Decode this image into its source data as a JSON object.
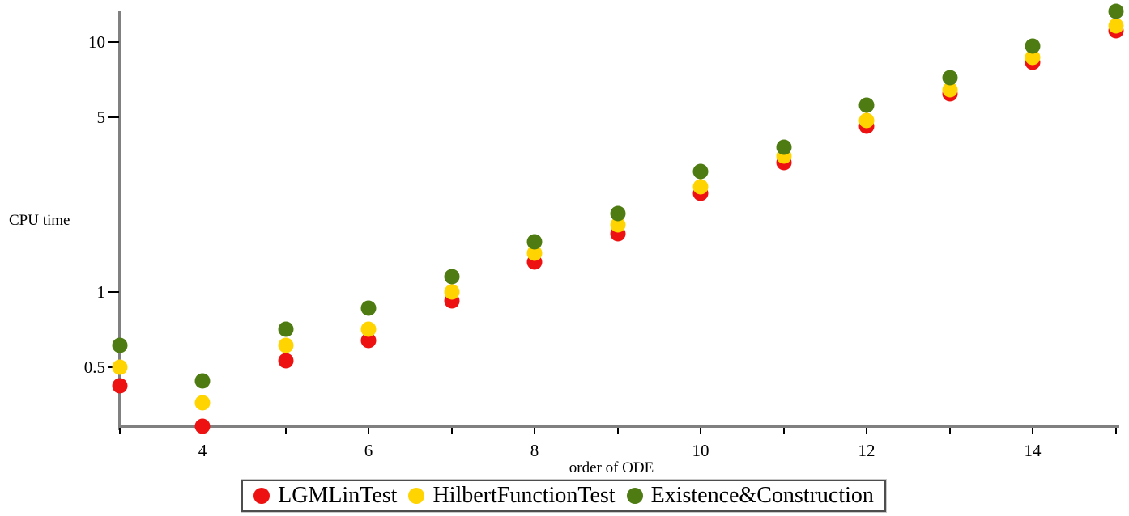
{
  "chart_data": {
    "type": "scatter",
    "y_scale": "log",
    "xlabel": "order of ODE",
    "ylabel": "CPU time",
    "grid": false,
    "legend_position": "bottom-center",
    "x": [
      3,
      4,
      5,
      6,
      7,
      8,
      9,
      10,
      11,
      12,
      13,
      14,
      15
    ],
    "x_tick_labels": [
      4,
      6,
      8,
      10,
      12,
      14
    ],
    "y_ticks": [
      {
        "label": "10",
        "value": 10
      },
      {
        "label": "5",
        "value": 5
      },
      {
        "label": "1",
        "value": 1
      },
      {
        "label": "0.5",
        "value": 0.5
      }
    ],
    "xlim": [
      3,
      15.2
    ],
    "ylim": [
      0.29,
      13.4
    ],
    "series": [
      {
        "name": "LGMLinTest",
        "color": "#ee1111",
        "values": [
          0.42,
          0.29,
          0.53,
          0.64,
          0.92,
          1.32,
          1.71,
          2.48,
          3.29,
          4.61,
          6.21,
          8.3,
          11.1
        ]
      },
      {
        "name": "HilbertFunctionTest",
        "color": "#ffd400",
        "values": [
          0.5,
          0.36,
          0.61,
          0.71,
          1.0,
          1.43,
          1.86,
          2.64,
          3.5,
          4.86,
          6.44,
          8.68,
          11.6
        ]
      },
      {
        "name": "Existence&Construction",
        "color": "#4e7c12",
        "values": [
          0.61,
          0.44,
          0.71,
          0.86,
          1.15,
          1.59,
          2.06,
          3.04,
          3.8,
          5.59,
          7.2,
          9.63,
          13.3
        ]
      }
    ]
  }
}
